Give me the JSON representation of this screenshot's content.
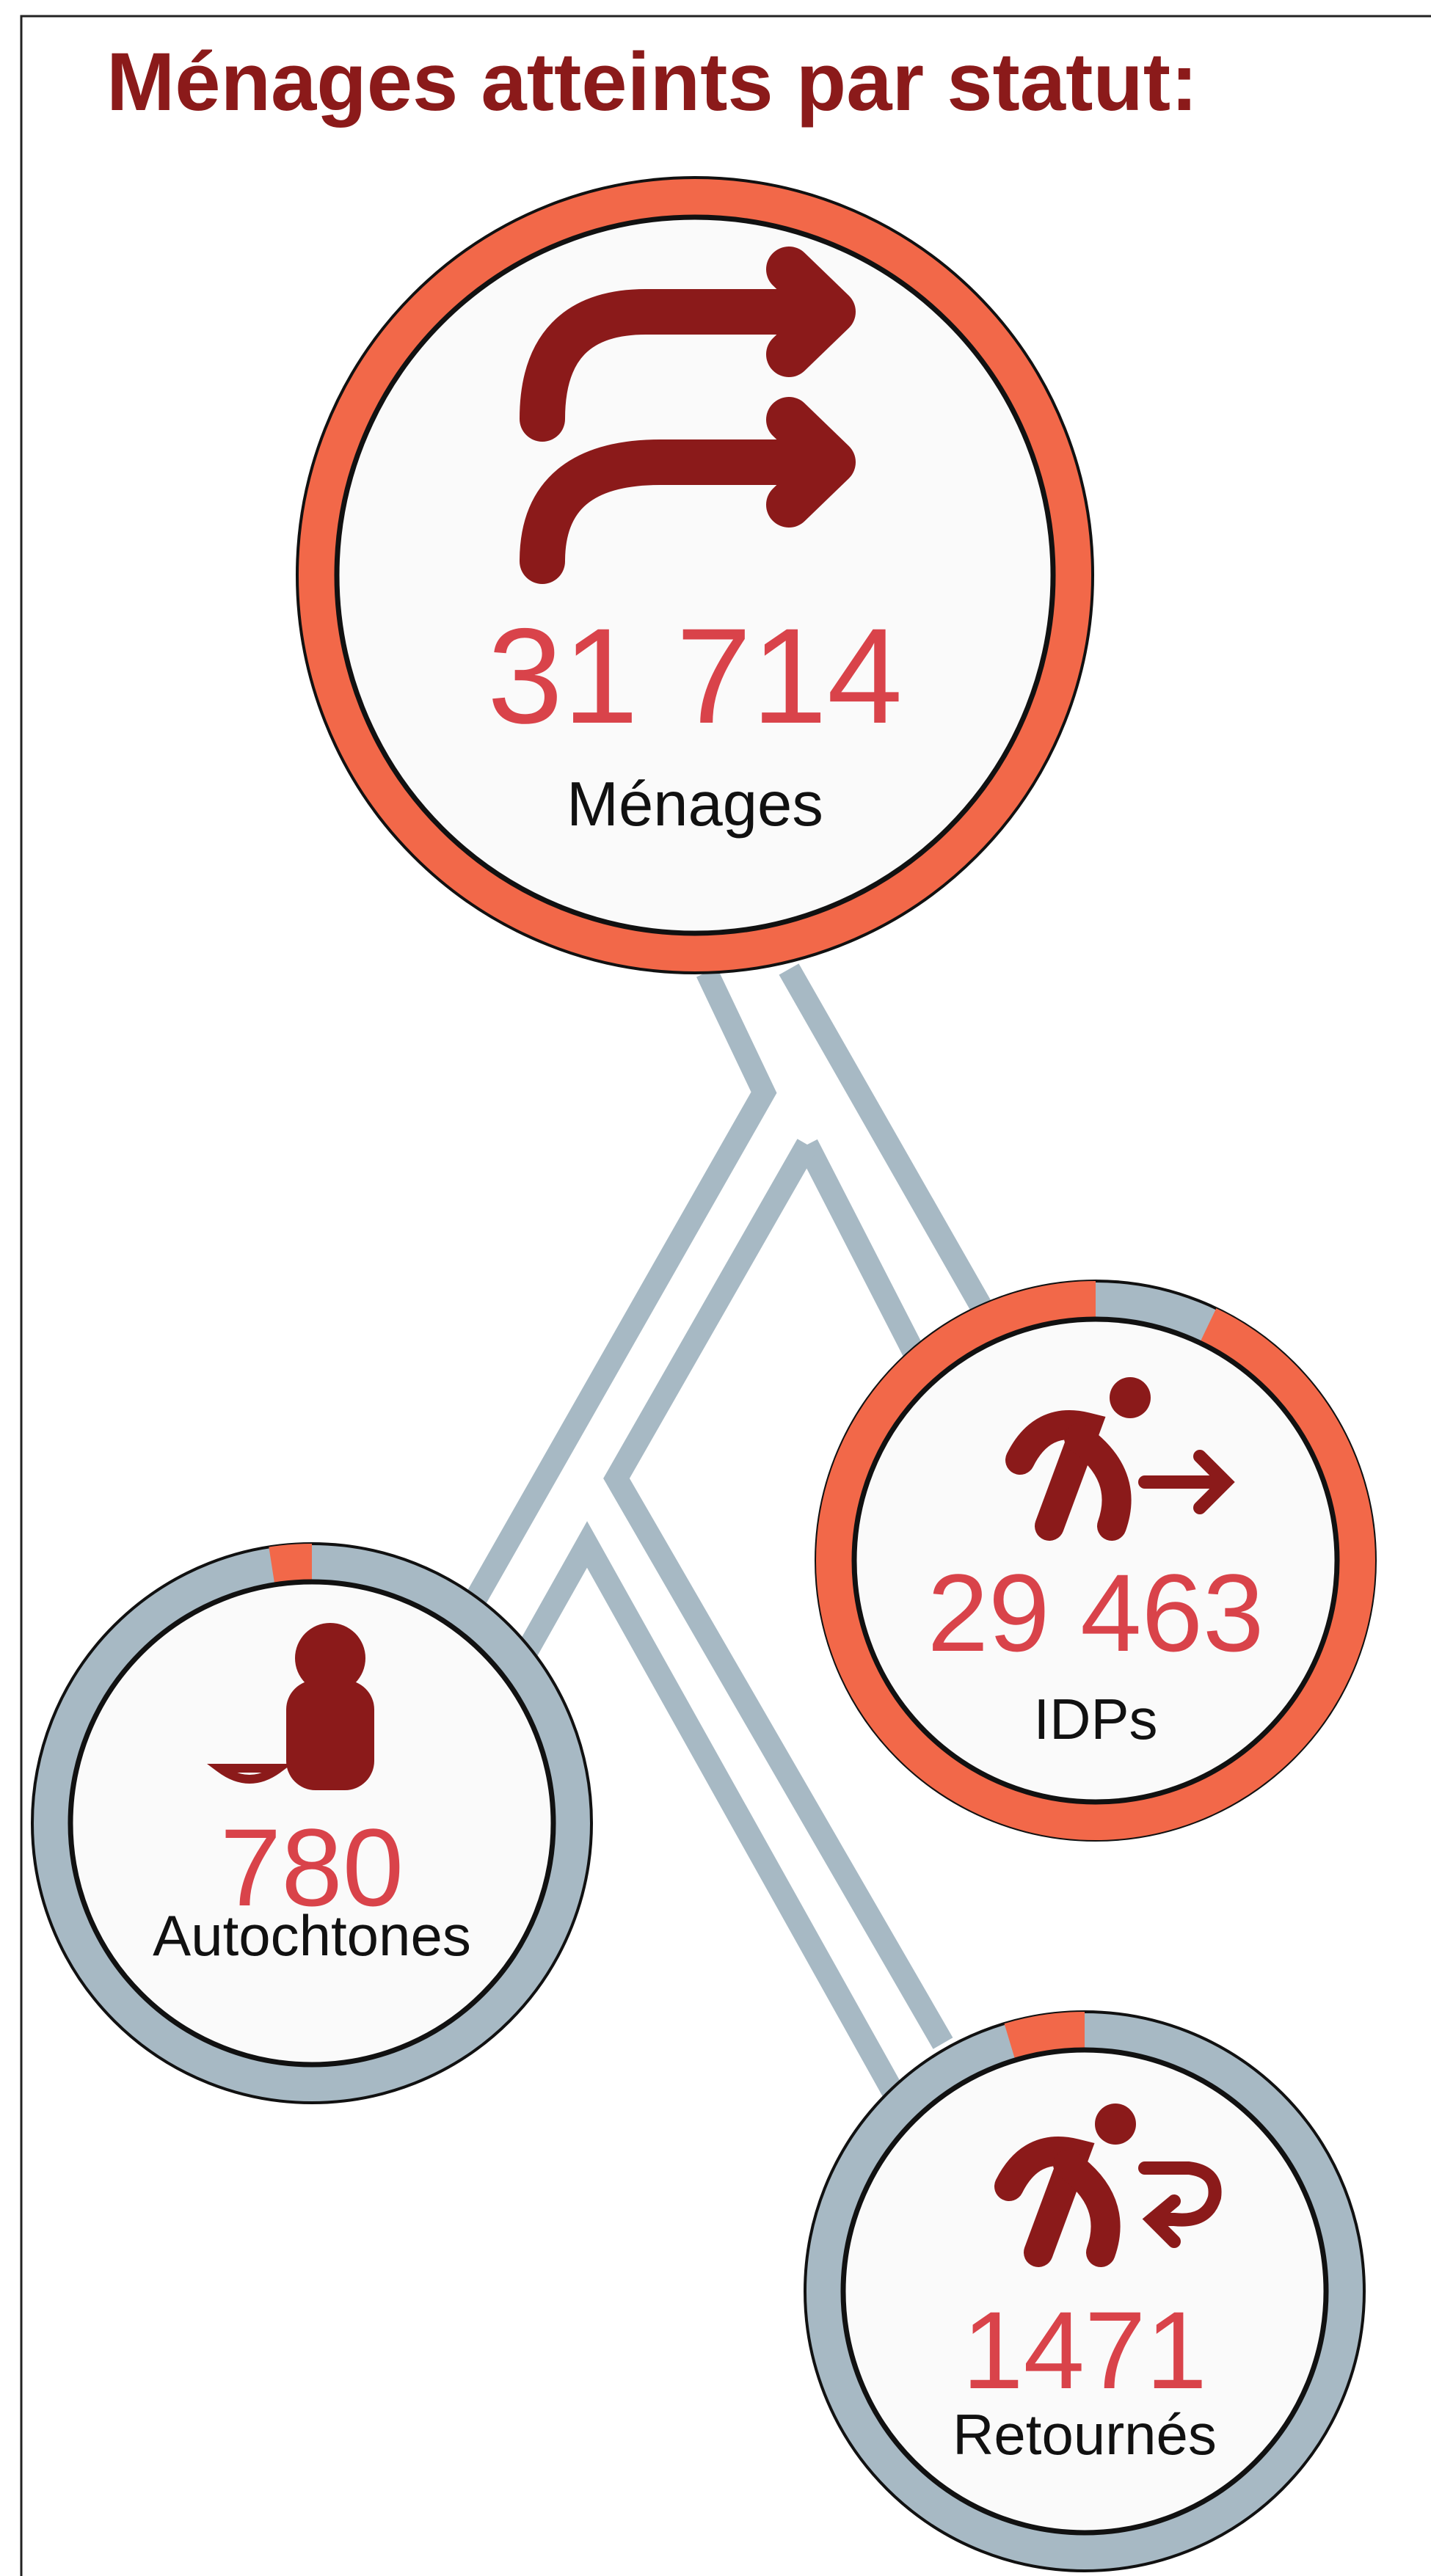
{
  "title": "Ménages atteints par statut:",
  "total": {
    "label": "Ménages",
    "value": 31714,
    "value_label": "31 714"
  },
  "nodes": [
    {
      "label": "IDPs",
      "value": 29463,
      "value_label": "29 463"
    },
    {
      "label": "Autochtones",
      "value": 780,
      "value_label": "780"
    },
    {
      "label": "Retournés",
      "value": 1471,
      "value_label": "1471"
    }
  ]
}
